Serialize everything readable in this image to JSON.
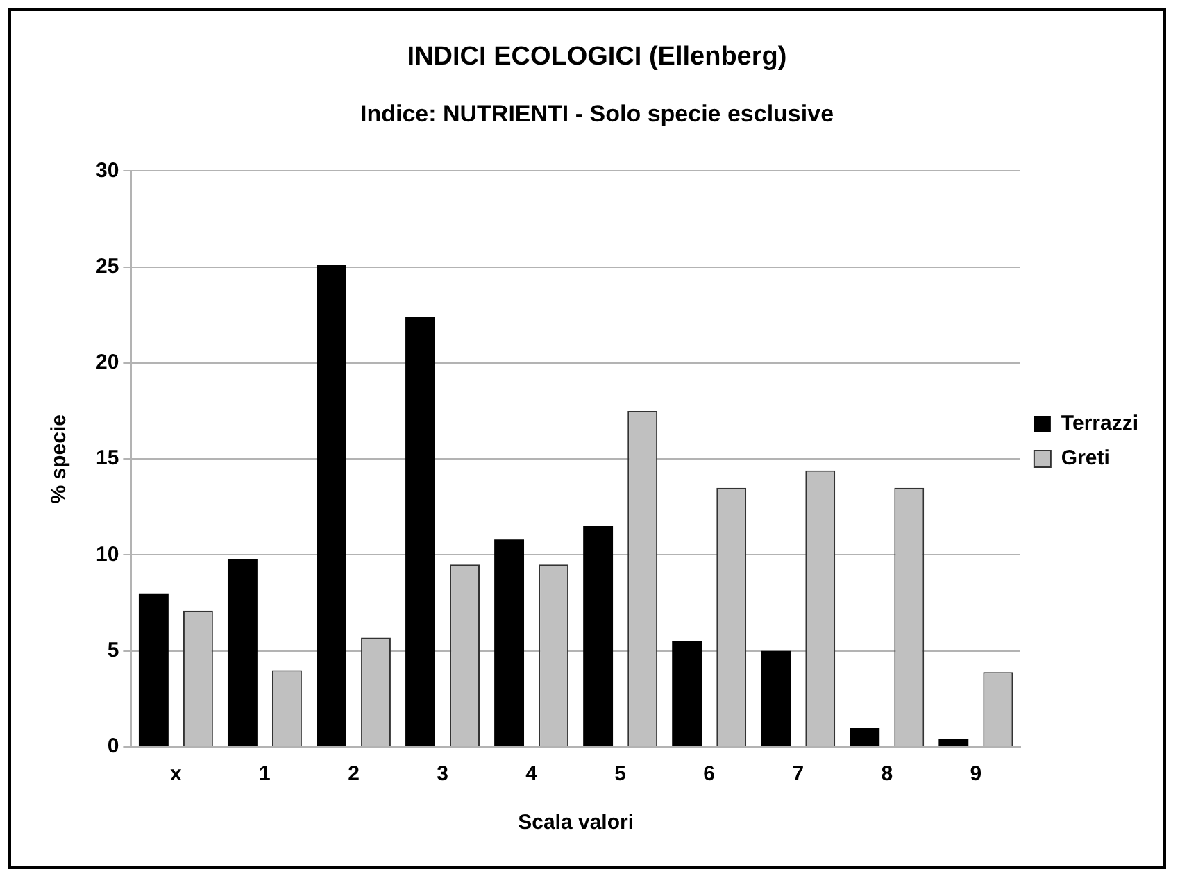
{
  "chart_data": {
    "type": "bar",
    "title": "INDICI ECOLOGICI (Ellenberg)",
    "subtitle": "Indice: NUTRIENTI - Solo specie esclusive",
    "xlabel": "Scala valori",
    "ylabel": "% specie",
    "categories": [
      "x",
      "1",
      "2",
      "3",
      "4",
      "5",
      "6",
      "7",
      "8",
      "9"
    ],
    "series": [
      {
        "name": "Terrazzi",
        "color": "#000000",
        "values": [
          8.0,
          9.8,
          25.1,
          22.4,
          10.8,
          11.5,
          5.5,
          5.0,
          1.0,
          0.4
        ]
      },
      {
        "name": "Greti",
        "color": "#c0c0c0",
        "values": [
          7.1,
          4.0,
          5.7,
          9.5,
          9.5,
          17.5,
          13.5,
          14.4,
          13.5,
          3.9
        ]
      }
    ],
    "ylim": [
      0,
      30
    ],
    "yticks": [
      0,
      5,
      10,
      15,
      20,
      25,
      30
    ],
    "grid": "y",
    "legend": "right"
  }
}
